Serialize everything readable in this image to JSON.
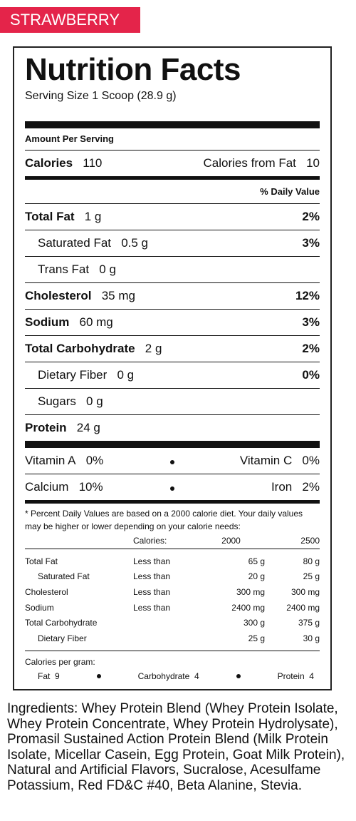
{
  "tag": "STRAWBERRY",
  "title": "Nutrition Facts",
  "serving_size": "Serving Size 1 Scoop (28.9 g)",
  "amount_per_serving": "Amount Per Serving",
  "calories": {
    "label": "Calories",
    "value": 110,
    "from_fat_label": "Calories from Fat",
    "from_fat_value": 10
  },
  "daily_value_header": "% Daily Value",
  "nutrients": [
    {
      "name": "Total Fat",
      "amount": "1 g",
      "dv": "2%",
      "bold": true
    },
    {
      "name": "Saturated Fat",
      "amount": "0.5 g",
      "dv": "3%",
      "bold": false
    },
    {
      "name": "Trans Fat",
      "amount": "0 g",
      "bold": false
    },
    {
      "name": "Cholesterol",
      "amount": "35 mg",
      "dv": "12%",
      "bold": true
    },
    {
      "name": "Sodium",
      "amount": "60 mg",
      "dv": "3%",
      "bold": true
    },
    {
      "name": "Total Carbohydrate",
      "amount": "2 g",
      "dv": "2%",
      "bold": true
    },
    {
      "name": "Dietary Fiber",
      "amount": "0 g",
      "dv": "0%",
      "bold": false
    },
    {
      "name": "Sugars",
      "amount": "0 g",
      "bold": false
    },
    {
      "name": "Protein",
      "amount": "24 g",
      "bold": true
    }
  ],
  "vitamins": [
    [
      {
        "name": "Vitamin A",
        "dv": "0%"
      },
      {
        "name": "Vitamin C",
        "dv": "0%"
      }
    ],
    [
      {
        "name": "Calcium",
        "dv": "10%"
      },
      {
        "name": "Iron",
        "dv": "2%"
      }
    ]
  ],
  "footnote": "* Percent Daily Values are based on a 2000 calorie diet. Your daily values may be higher or lower depending on your calorie needs:",
  "reference": {
    "header": {
      "label": "Calories:",
      "low": 2000,
      "high": 2500
    },
    "rows": [
      {
        "name": "Total Fat",
        "limit": "Less than",
        "low": "65 g",
        "high": "80 g",
        "indent": false
      },
      {
        "name": "Saturated Fat",
        "limit": "Less than",
        "low": "20 g",
        "high": "25 g",
        "indent": true
      },
      {
        "name": "Cholesterol",
        "limit": "Less than",
        "low": "300 mg",
        "high": "300 mg",
        "indent": false
      },
      {
        "name": "Sodium",
        "limit": "Less than",
        "low": "2400 mg",
        "high": "2400 mg",
        "indent": false
      },
      {
        "name": "Total Carbohydrate",
        "low": "300 g",
        "high": "375 g",
        "indent": false
      },
      {
        "name": "Dietary Fiber",
        "low": "25 g",
        "high": "30 g",
        "indent": true
      }
    ]
  },
  "calories_per_gram": {
    "label": "Calories per gram:",
    "items": [
      {
        "name": "Fat",
        "value": 9
      },
      {
        "name": "Carbohydrate",
        "value": 4
      },
      {
        "name": "Protein",
        "value": 4
      }
    ]
  },
  "ingredients": {
    "label": "Ingredients:",
    "text": "Whey Protein Blend (Whey Protein Isolate, Whey Protein Concentrate, Whey Protein Hydrolysate), Promasil Sustained Action Protein Blend (Milk Protein Isolate, Micellar Casein, Egg Protein, Goat Milk Protein), Natural and Artificial Flavors, Sucralose, Acesulfame Potassium, Red FD&C #40, Beta Alanine, Stevia."
  }
}
